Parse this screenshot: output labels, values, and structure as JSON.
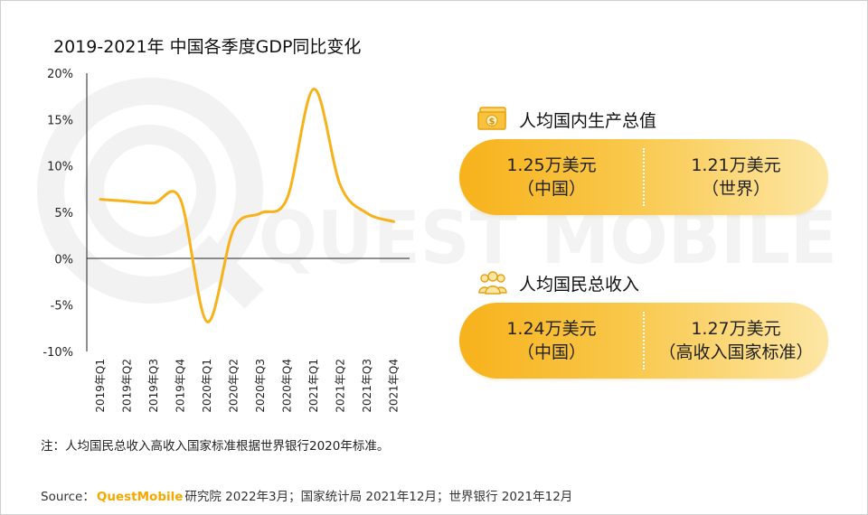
{
  "watermark": {
    "text": "QUEST MOBILE"
  },
  "chart_data": {
    "type": "line",
    "title": "2019-2021年 中国各季度GDP同比变化",
    "xlabel": "",
    "ylabel": "",
    "categories": [
      "2019年Q1",
      "2019年Q2",
      "2019年Q3",
      "2019年Q4",
      "2020年Q1",
      "2020年Q2",
      "2020年Q3",
      "2020年Q4",
      "2021年Q1",
      "2021年Q2",
      "2021年Q3",
      "2021年Q4"
    ],
    "series": [
      {
        "values": [
          6.4,
          6.2,
          6.0,
          6.4,
          -6.8,
          3.2,
          4.9,
          6.5,
          18.3,
          7.9,
          4.9,
          4.0
        ],
        "color": "#f7b21b"
      }
    ],
    "ylim": [
      -10,
      20
    ],
    "yticks": [
      "20%",
      "15%",
      "10%",
      "5%",
      "0%",
      "-5%",
      "-10%"
    ],
    "grid": false,
    "legend": "none"
  },
  "cards": [
    {
      "icon": "money-bill-icon",
      "title": "人均国内生产总值",
      "left": {
        "value": "1.25万美元",
        "label": "（中国）"
      },
      "right": {
        "value": "1.21万美元",
        "label": "（世界）"
      }
    },
    {
      "icon": "people-group-icon",
      "title": "人均国民总收入",
      "left": {
        "value": "1.24万美元",
        "label": "（中国）"
      },
      "right": {
        "value": "1.27万美元",
        "label": "（高收入国家标准）"
      }
    }
  ],
  "note": "注：人均国民总收入高收入国家标准根据世界银行2020年标准。",
  "source": {
    "prefix": "Source：",
    "brand": "QuestMobile",
    "suffix": "研究院 2022年3月；国家统计局 2021年12月；世界银行 2021年12月"
  },
  "colors": {
    "accent": "#f7b21b",
    "axis": "#222222",
    "watermark": "#f1f1f1"
  }
}
